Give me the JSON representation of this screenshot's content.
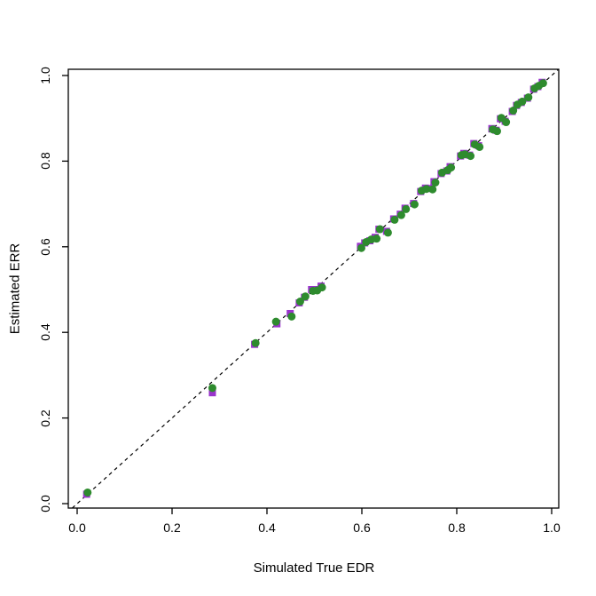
{
  "chart_data": {
    "type": "scatter",
    "title": "",
    "xlabel": "Simulated True EDR",
    "ylabel": "Estimated ERR",
    "xlim": [
      0,
      1
    ],
    "ylim": [
      0,
      1
    ],
    "x_ticks": [
      "0.0",
      "0.2",
      "0.4",
      "0.6",
      "0.8",
      "1.0"
    ],
    "y_ticks": [
      "0.0",
      "0.2",
      "0.4",
      "0.6",
      "0.8",
      "1.0"
    ],
    "x_tick_values": [
      0,
      0.2,
      0.4,
      0.6,
      0.8,
      1.0
    ],
    "y_tick_values": [
      0,
      0.2,
      0.4,
      0.6,
      0.8,
      1.0
    ],
    "grid": false,
    "legend": "none",
    "frame_color": "#000000",
    "reference_line": {
      "style": "dashed",
      "color": "#000000",
      "from": [
        0,
        0
      ],
      "to": [
        1.014,
        1.014
      ]
    },
    "series": [
      {
        "name": "purple-squares",
        "marker": "square",
        "color": "#9933cc",
        "points": [
          [
            0.02,
            0.022
          ],
          [
            0.285,
            0.259
          ],
          [
            0.374,
            0.372
          ],
          [
            0.421,
            0.42
          ],
          [
            0.449,
            0.444
          ],
          [
            0.468,
            0.469
          ],
          [
            0.479,
            0.482
          ],
          [
            0.494,
            0.5
          ],
          [
            0.505,
            0.5
          ],
          [
            0.514,
            0.508
          ],
          [
            0.597,
            0.601
          ],
          [
            0.606,
            0.609
          ],
          [
            0.617,
            0.614
          ],
          [
            0.628,
            0.622
          ],
          [
            0.636,
            0.641
          ],
          [
            0.652,
            0.636
          ],
          [
            0.667,
            0.665
          ],
          [
            0.681,
            0.676
          ],
          [
            0.691,
            0.69
          ],
          [
            0.709,
            0.701
          ],
          [
            0.724,
            0.729
          ],
          [
            0.734,
            0.737
          ],
          [
            0.747,
            0.736
          ],
          [
            0.752,
            0.752
          ],
          [
            0.767,
            0.771
          ],
          [
            0.779,
            0.777
          ],
          [
            0.786,
            0.787
          ],
          [
            0.808,
            0.812
          ],
          [
            0.815,
            0.818
          ],
          [
            0.827,
            0.814
          ],
          [
            0.836,
            0.841
          ],
          [
            0.846,
            0.836
          ],
          [
            0.874,
            0.876
          ],
          [
            0.883,
            0.872
          ],
          [
            0.892,
            0.899
          ],
          [
            0.902,
            0.893
          ],
          [
            0.917,
            0.916
          ],
          [
            0.926,
            0.93
          ],
          [
            0.936,
            0.937
          ],
          [
            0.949,
            0.947
          ],
          [
            0.962,
            0.968
          ],
          [
            0.971,
            0.974
          ],
          [
            0.98,
            0.984
          ]
        ]
      },
      {
        "name": "green-circles",
        "marker": "circle",
        "color": "#2e8b2e",
        "points": [
          [
            0.022,
            0.026
          ],
          [
            0.285,
            0.27
          ],
          [
            0.376,
            0.375
          ],
          [
            0.419,
            0.425
          ],
          [
            0.452,
            0.437
          ],
          [
            0.47,
            0.472
          ],
          [
            0.481,
            0.484
          ],
          [
            0.497,
            0.497
          ],
          [
            0.506,
            0.498
          ],
          [
            0.516,
            0.505
          ],
          [
            0.599,
            0.597
          ],
          [
            0.609,
            0.611
          ],
          [
            0.62,
            0.617
          ],
          [
            0.631,
            0.619
          ],
          [
            0.638,
            0.641
          ],
          [
            0.655,
            0.633
          ],
          [
            0.669,
            0.663
          ],
          [
            0.683,
            0.674
          ],
          [
            0.693,
            0.688
          ],
          [
            0.711,
            0.699
          ],
          [
            0.726,
            0.731
          ],
          [
            0.736,
            0.735
          ],
          [
            0.749,
            0.734
          ],
          [
            0.755,
            0.75
          ],
          [
            0.769,
            0.773
          ],
          [
            0.781,
            0.779
          ],
          [
            0.788,
            0.785
          ],
          [
            0.81,
            0.814
          ],
          [
            0.817,
            0.816
          ],
          [
            0.829,
            0.812
          ],
          [
            0.838,
            0.839
          ],
          [
            0.848,
            0.833
          ],
          [
            0.876,
            0.874
          ],
          [
            0.885,
            0.87
          ],
          [
            0.894,
            0.901
          ],
          [
            0.904,
            0.891
          ],
          [
            0.919,
            0.918
          ],
          [
            0.928,
            0.932
          ],
          [
            0.938,
            0.939
          ],
          [
            0.951,
            0.949
          ],
          [
            0.964,
            0.97
          ],
          [
            0.973,
            0.976
          ],
          [
            0.982,
            0.982
          ]
        ]
      }
    ]
  }
}
